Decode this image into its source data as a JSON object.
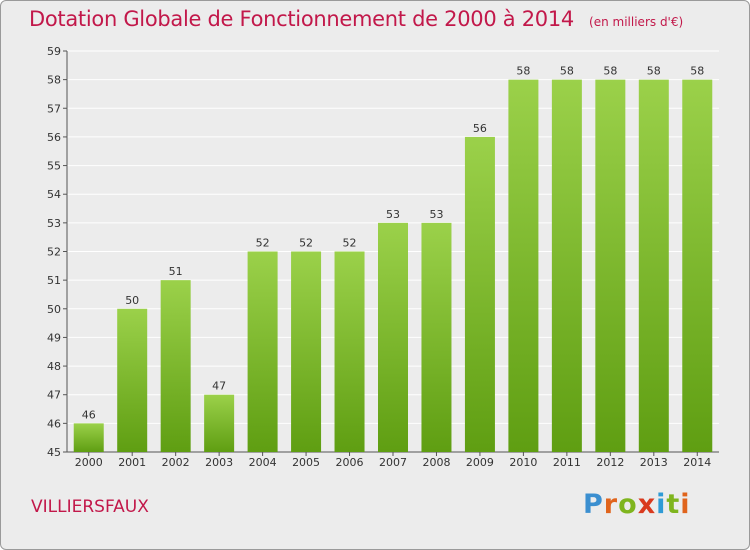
{
  "header": {
    "title": "Dotation Globale de Fonctionnement de 2000 à 2014",
    "subtitle": "(en milliers d'€)"
  },
  "footer": {
    "commune": "VILLIERSFAUX"
  },
  "logo": {
    "text": "Proxiti",
    "letter_colors": [
      "#3b8fd0",
      "#e0641c",
      "#7fb51e",
      "#d93a1e",
      "#2f9bd6",
      "#7fb51e",
      "#e0641c"
    ]
  },
  "colors": {
    "bar_top": "#9bd14a",
    "bar_bottom": "#5f9e12",
    "grid": "#ffffff",
    "background": "#ececec",
    "accent": "#c2184a"
  },
  "chart_data": {
    "type": "bar",
    "title": "Dotation Globale de Fonctionnement de 2000 à 2014",
    "subtitle": "(en milliers d'€)",
    "categories": [
      "2000",
      "2001",
      "2002",
      "2003",
      "2004",
      "2005",
      "2006",
      "2007",
      "2008",
      "2009",
      "2010",
      "2011",
      "2012",
      "2013",
      "2014"
    ],
    "values": [
      46,
      50,
      51,
      47,
      52,
      52,
      52,
      53,
      53,
      56,
      58,
      58,
      58,
      58,
      58
    ],
    "ylim": [
      45,
      59
    ],
    "yticks": [
      45,
      46,
      47,
      48,
      49,
      50,
      51,
      52,
      53,
      54,
      55,
      56,
      57,
      58,
      59
    ],
    "grid": true,
    "legend": "none"
  }
}
